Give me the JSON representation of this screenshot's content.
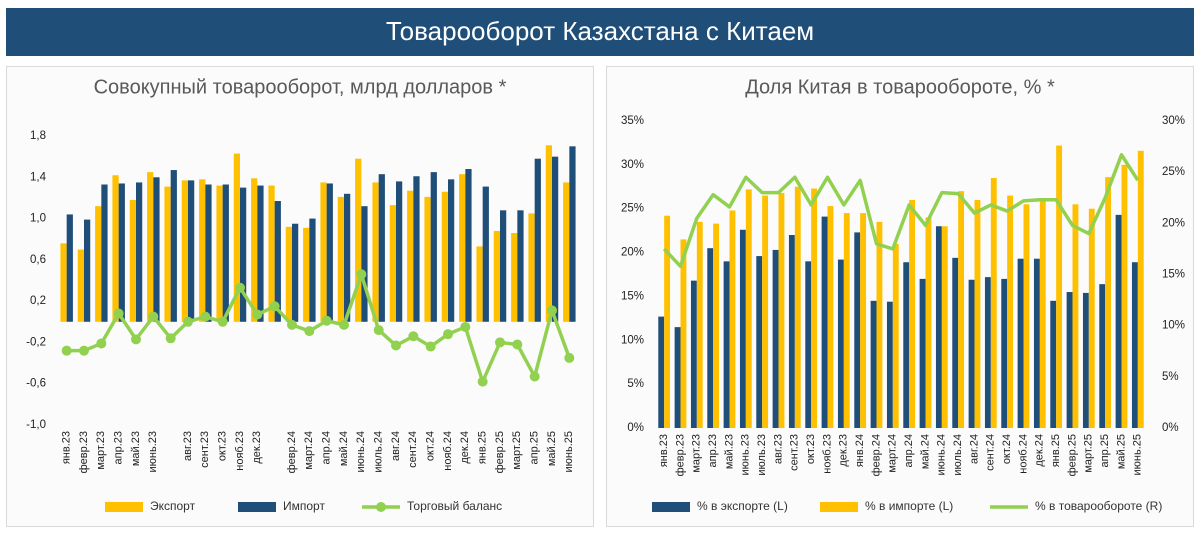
{
  "title": "Товарооборот Казахстана с Китаем",
  "chart_data": [
    {
      "type": "bar",
      "title": "Совокупный товарооборот, млрд долларов *",
      "categories": [
        "янв.23",
        "февр.23",
        "март.23",
        "апр.23",
        "май.23",
        "июнь.23",
        null,
        "авг.23",
        "сент.23",
        "окт.23",
        "нояб.23",
        "дек.23",
        null,
        "февр.24",
        "март.24",
        "апр.24",
        "май.24",
        "июнь.24",
        "июль.24",
        "авг.24",
        "сент.24",
        "окт.24",
        "нояб.24",
        "дек.24",
        "янв.25",
        "февр.25",
        "март.25",
        "апр.25",
        "май.25",
        "июнь.25"
      ],
      "series": [
        {
          "name": "Экспорт",
          "type": "bar",
          "color": "#ffc000",
          "values": [
            0.76,
            0.7,
            1.12,
            1.42,
            1.18,
            1.45,
            1.31,
            1.37,
            1.38,
            1.32,
            1.63,
            1.39,
            1.32,
            0.92,
            0.91,
            1.35,
            1.21,
            1.58,
            1.35,
            1.13,
            1.27,
            1.21,
            1.26,
            1.43,
            0.73,
            0.88,
            0.86,
            1.05,
            1.71,
            1.35
          ]
        },
        {
          "name": "Импорт",
          "type": "bar",
          "color": "#1f4e79",
          "values": [
            1.04,
            0.99,
            1.33,
            1.34,
            1.35,
            1.4,
            1.47,
            1.37,
            1.33,
            1.33,
            1.3,
            1.32,
            1.17,
            0.95,
            1.0,
            1.34,
            1.24,
            1.12,
            1.43,
            1.36,
            1.41,
            1.45,
            1.38,
            1.48,
            1.31,
            1.08,
            1.08,
            1.58,
            1.6,
            1.7
          ]
        },
        {
          "name": "Торговый баланс",
          "type": "line",
          "marker": true,
          "color": "#92d050",
          "values": [
            -0.28,
            -0.28,
            -0.21,
            0.08,
            -0.17,
            0.05,
            -0.16,
            0.0,
            0.05,
            0.0,
            0.33,
            0.07,
            0.15,
            -0.03,
            -0.09,
            0.01,
            -0.03,
            0.46,
            -0.08,
            -0.23,
            -0.14,
            -0.24,
            -0.12,
            -0.05,
            -0.58,
            -0.2,
            -0.22,
            -0.53,
            0.11,
            -0.35
          ]
        }
      ],
      "ylim": [
        -1,
        1.8
      ],
      "yticks": [
        {
          "value": -1,
          "label": "-1,0"
        },
        {
          "value": -0.6,
          "label": "-0,6"
        },
        {
          "value": -0.2,
          "label": "-0,2"
        },
        {
          "value": 0.2,
          "label": "0,2"
        },
        {
          "value": 0.6,
          "label": "0,6"
        },
        {
          "value": 1,
          "label": "1,0"
        },
        {
          "value": 1.4,
          "label": "1,4"
        },
        {
          "value": 1.8,
          "label": "1,8"
        }
      ],
      "grid": false
    },
    {
      "type": "bar",
      "title": "Доля Китая в товарообороте, % *",
      "categories": [
        "янв.23",
        "февр.23",
        "март.23",
        "апр.23",
        "май.23",
        "июнь.23",
        "июль.23",
        "авг.23",
        "сент.23",
        "окт.23",
        "нояб.23",
        "дек.23",
        "янв.24",
        "февр.24",
        "март.24",
        "апр.24",
        "май.24",
        "июнь.24",
        "июль.24",
        "авг.24",
        "сент.24",
        "окт.24",
        "нояб.24",
        "дек.24",
        "янв.25",
        "февр.25",
        "март.25",
        "апр.25",
        "май.25",
        "июнь.25"
      ],
      "series": [
        {
          "name": "% в экспорте (L)",
          "type": "bar",
          "color": "#1f4e79",
          "values": [
            12.7,
            11.5,
            16.8,
            20.5,
            19.0,
            22.6,
            19.6,
            20.3,
            22.0,
            19.0,
            24.1,
            19.2,
            22.3,
            14.5,
            14.4,
            18.9,
            17.0,
            23.0,
            19.4,
            16.9,
            17.2,
            17.0,
            19.3,
            19.3,
            14.5,
            15.5,
            15.4,
            16.4,
            24.3,
            18.9
          ]
        },
        {
          "name": "% в импорте (L)",
          "type": "bar",
          "color": "#ffc000",
          "values": [
            24.2,
            21.5,
            23.5,
            23.3,
            24.8,
            27.2,
            26.5,
            26.8,
            27.5,
            27.3,
            25.3,
            24.5,
            24.5,
            23.5,
            21.0,
            26.0,
            24.0,
            23.0,
            27.0,
            26.0,
            28.5,
            26.5,
            25.5,
            26.0,
            32.2,
            25.5,
            25.0,
            28.6,
            30.0,
            31.6
          ]
        },
        {
          "name": "% в товарообороте (R)",
          "type": "line",
          "axis": "y2",
          "marker": false,
          "color": "#92d050",
          "values": [
            17.5,
            15.8,
            20.5,
            22.8,
            21.6,
            24.5,
            23.0,
            23.0,
            24.5,
            21.8,
            24.5,
            21.8,
            24.2,
            18.0,
            17.5,
            21.8,
            19.8,
            23.0,
            22.9,
            21.0,
            21.8,
            21.2,
            22.2,
            22.3,
            22.3,
            19.8,
            19.0,
            22.5,
            26.7,
            24.2
          ]
        }
      ],
      "ylim": [
        0,
        35
      ],
      "yticks": [
        {
          "value": 0,
          "label": "0%"
        },
        {
          "value": 5,
          "label": "5%"
        },
        {
          "value": 10,
          "label": "10%"
        },
        {
          "value": 15,
          "label": "15%"
        },
        {
          "value": 20,
          "label": "20%"
        },
        {
          "value": 25,
          "label": "25%"
        },
        {
          "value": 30,
          "label": "30%"
        },
        {
          "value": 35,
          "label": "35%"
        }
      ],
      "y2lim": [
        0,
        30
      ],
      "y2ticks": [
        {
          "value": 0,
          "label": "0%"
        },
        {
          "value": 5,
          "label": "5%"
        },
        {
          "value": 10,
          "label": "10%"
        },
        {
          "value": 15,
          "label": "15%"
        },
        {
          "value": 20,
          "label": "20%"
        },
        {
          "value": 25,
          "label": "25%"
        },
        {
          "value": 30,
          "label": "30%"
        }
      ],
      "grid": false
    }
  ]
}
